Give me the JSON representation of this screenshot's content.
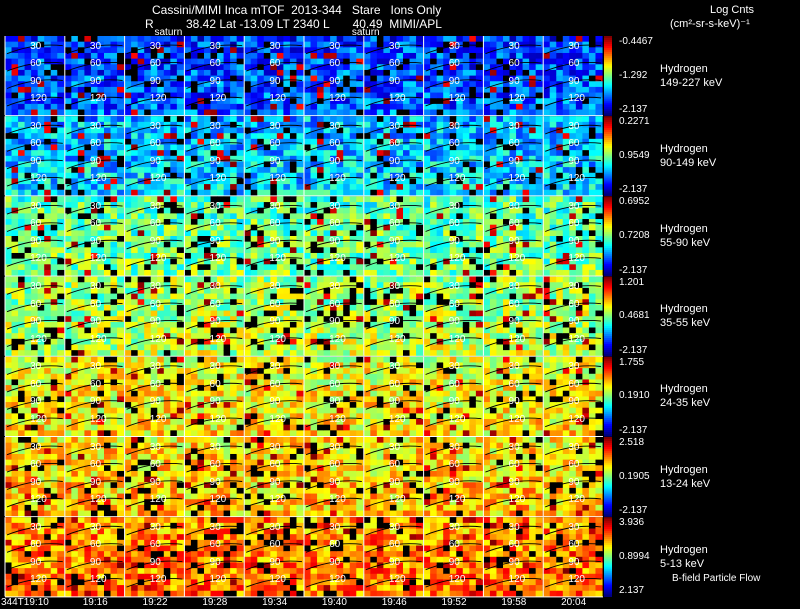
{
  "header": {
    "line1": "Cassini/MIMI Inca mTOF  2013-344   Stare   Ions Only",
    "line2_r": "R",
    "line2": "38.42 Lat -13.09 LT 2340 L       40.49  MIMI/APL"
  },
  "colorbar_title": "Log Cnts",
  "colorbar_units": "(cm²-sr-s-keV)⁻¹",
  "footnote": "B-field Particle Flow",
  "colors": {
    "background": "#000000"
  },
  "chart_data": {
    "type": "heatmap",
    "title": "Cassini/MIMI Inca mTOF 2013-344 Stare Ions Only",
    "time_labels": [
      "344T19:10",
      "19:16",
      "19:22",
      "19:28",
      "19:34",
      "19:40",
      "19:46",
      "19:52",
      "19:58",
      "20:04"
    ],
    "saturn_label": "saturn",
    "pitch_angle_labels": [
      "30",
      "60",
      "90",
      "120"
    ],
    "grid_columns": 10,
    "channels": [
      {
        "species": "Hydrogen",
        "energy": "149-227 keV",
        "max": "-0.4467",
        "mid": "-1.292",
        "min": "-2.137",
        "fill_level": 0.18
      },
      {
        "species": "Hydrogen",
        "energy": "90-149 keV",
        "max": "0.2271",
        "mid": "0.9549",
        "min": "-2.137",
        "fill_level": 0.3
      },
      {
        "species": "Hydrogen",
        "energy": "55-90 keV",
        "max": "0.6952",
        "mid": "0.7208",
        "min": "-2.137",
        "fill_level": 0.45
      },
      {
        "species": "Hydrogen",
        "energy": "35-55 keV",
        "max": "1.201",
        "mid": "0.4681",
        "min": "-2.137",
        "fill_level": 0.52
      },
      {
        "species": "Hydrogen",
        "energy": "24-35 keV",
        "max": "1.755",
        "mid": "0.1910",
        "min": "-2.137",
        "fill_level": 0.6
      },
      {
        "species": "Hydrogen",
        "energy": "13-24 keV",
        "max": "2.518",
        "mid": "0.1905",
        "min": "-2.137",
        "fill_level": 0.64
      },
      {
        "species": "Hydrogen",
        "energy": "5-13 keV",
        "max": "3.936",
        "mid": "0.8994",
        "min": "2.137",
        "fill_level": 0.72
      }
    ]
  }
}
